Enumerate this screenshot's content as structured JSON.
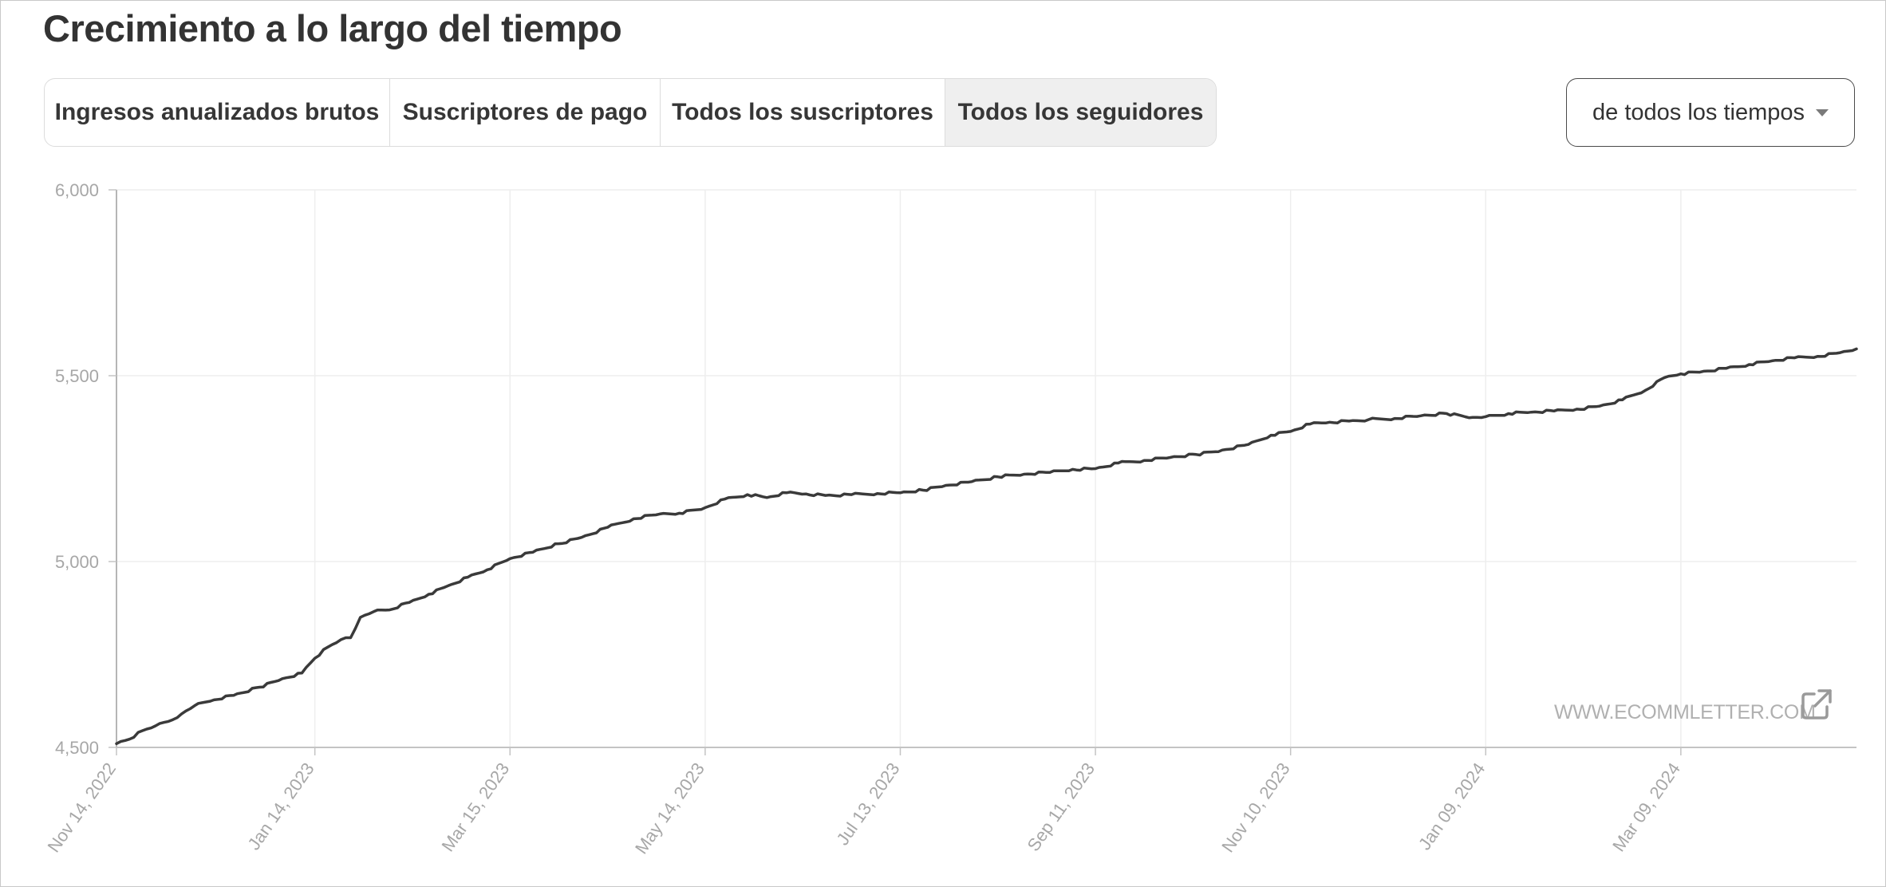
{
  "page": {
    "title": "Crecimiento a lo largo del tiempo"
  },
  "tabs": [
    {
      "label": "Ingresos anualizados brutos",
      "active": false
    },
    {
      "label": "Suscriptores de pago",
      "active": false
    },
    {
      "label": "Todos los suscriptores",
      "active": false
    },
    {
      "label": "Todos los seguidores",
      "active": true
    }
  ],
  "range_select": {
    "value": "de todos los tiempos",
    "icon": "caret-down-icon"
  },
  "watermark": {
    "text": "WWW.ECOMMLETTER.COM",
    "icon": "external-link-icon"
  },
  "colors": {
    "line": "#3a3a3a",
    "grid": "#eeeeee",
    "tick_text": "#a7a7a7",
    "active_tab_bg": "#efefef"
  },
  "chart_data": {
    "type": "line",
    "title": "",
    "xlabel": "",
    "ylabel": "",
    "ylim": [
      4500,
      6000
    ],
    "y_ticks": [
      "4,500",
      "5,000",
      "5,500",
      "6,000"
    ],
    "y_tick_values": [
      4500,
      5000,
      5500,
      6000
    ],
    "x_ticks": [
      "Nov 14, 2022",
      "Jan 14, 2023",
      "Mar 15, 2023",
      "May 14, 2023",
      "Jul 13, 2023",
      "Sep 11, 2023",
      "Nov 10, 2023",
      "Jan 09, 2024",
      "Mar 09, 2024"
    ],
    "x_tick_values": [
      "2022-11-14",
      "2023-01-14",
      "2023-03-15",
      "2023-05-14",
      "2023-07-13",
      "2023-09-11",
      "2023-11-10",
      "2024-01-09",
      "2024-03-09"
    ],
    "xlim": [
      "2022-11-14",
      "2024-05-02"
    ],
    "grid": true,
    "series": [
      {
        "x": [
          "2022-11-14",
          "2022-11-18",
          "2022-11-22",
          "2022-11-26",
          "2022-11-30",
          "2022-12-04",
          "2022-12-08",
          "2022-12-14",
          "2022-12-20",
          "2022-12-28",
          "2023-01-04",
          "2023-01-10",
          "2023-01-14",
          "2023-01-18",
          "2023-01-22",
          "2023-01-25",
          "2023-01-28",
          "2023-02-01",
          "2023-02-06",
          "2023-02-12",
          "2023-02-18",
          "2023-02-24",
          "2023-03-02",
          "2023-03-08",
          "2023-03-15",
          "2023-03-22",
          "2023-03-30",
          "2023-04-06",
          "2023-04-14",
          "2023-04-22",
          "2023-04-30",
          "2023-05-06",
          "2023-05-14",
          "2023-05-20",
          "2023-05-27",
          "2023-06-02",
          "2023-06-08",
          "2023-06-14",
          "2023-06-20",
          "2023-06-28",
          "2023-07-06",
          "2023-07-13",
          "2023-07-20",
          "2023-07-27",
          "2023-08-04",
          "2023-08-12",
          "2023-08-20",
          "2023-08-28",
          "2023-09-04",
          "2023-09-11",
          "2023-09-18",
          "2023-09-26",
          "2023-10-04",
          "2023-10-12",
          "2023-10-20",
          "2023-10-28",
          "2023-11-04",
          "2023-11-10",
          "2023-11-16",
          "2023-11-22",
          "2023-11-28",
          "2023-12-04",
          "2023-12-12",
          "2023-12-20",
          "2023-12-28",
          "2024-01-05",
          "2024-01-09",
          "2024-01-16",
          "2024-01-23",
          "2024-01-30",
          "2024-02-06",
          "2024-02-13",
          "2024-02-20",
          "2024-02-27",
          "2024-03-04",
          "2024-03-09",
          "2024-03-16",
          "2024-03-23",
          "2024-03-30",
          "2024-04-06",
          "2024-04-13",
          "2024-04-20",
          "2024-04-27",
          "2024-05-02"
        ],
        "y": [
          4510,
          4522,
          4545,
          4558,
          4570,
          4590,
          4612,
          4628,
          4640,
          4662,
          4685,
          4700,
          4740,
          4770,
          4790,
          4795,
          4850,
          4865,
          4870,
          4890,
          4912,
          4935,
          4958,
          4978,
          5008,
          5025,
          5048,
          5065,
          5092,
          5115,
          5128,
          5130,
          5145,
          5168,
          5180,
          5172,
          5185,
          5182,
          5178,
          5180,
          5183,
          5185,
          5192,
          5205,
          5215,
          5228,
          5235,
          5240,
          5248,
          5250,
          5265,
          5272,
          5280,
          5288,
          5300,
          5315,
          5340,
          5350,
          5370,
          5375,
          5378,
          5382,
          5385,
          5392,
          5398,
          5388,
          5390,
          5398,
          5402,
          5405,
          5410,
          5418,
          5435,
          5460,
          5495,
          5505,
          5512,
          5520,
          5530,
          5540,
          5548,
          5552,
          5562,
          5572
        ]
      }
    ]
  }
}
